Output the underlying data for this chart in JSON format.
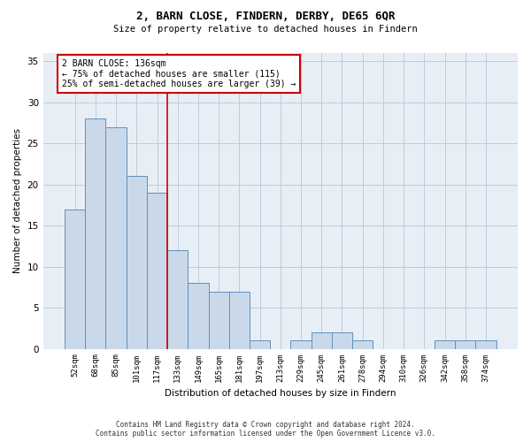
{
  "title1": "2, BARN CLOSE, FINDERN, DERBY, DE65 6QR",
  "title2": "Size of property relative to detached houses in Findern",
  "xlabel": "Distribution of detached houses by size in Findern",
  "ylabel": "Number of detached properties",
  "categories": [
    "52sqm",
    "68sqm",
    "85sqm",
    "101sqm",
    "117sqm",
    "133sqm",
    "149sqm",
    "165sqm",
    "181sqm",
    "197sqm",
    "213sqm",
    "229sqm",
    "245sqm",
    "261sqm",
    "278sqm",
    "294sqm",
    "310sqm",
    "326sqm",
    "342sqm",
    "358sqm",
    "374sqm"
  ],
  "values": [
    17,
    28,
    27,
    21,
    19,
    12,
    8,
    7,
    7,
    1,
    0,
    1,
    2,
    2,
    1,
    0,
    0,
    0,
    1,
    1,
    1
  ],
  "bar_color": "#c9d9ea",
  "bar_edge_color": "#6090bb",
  "vline_x": 4.5,
  "vline_color": "#cc0000",
  "annotation_text": "2 BARN CLOSE: 136sqm\n← 75% of detached houses are smaller (115)\n25% of semi-detached houses are larger (39) →",
  "annotation_box_color": "white",
  "annotation_box_edge_color": "#cc0000",
  "ylim": [
    0,
    36
  ],
  "yticks": [
    0,
    5,
    10,
    15,
    20,
    25,
    30,
    35
  ],
  "grid_color": "#bbccdd",
  "bg_color": "#e8eef5",
  "footer1": "Contains HM Land Registry data © Crown copyright and database right 2024.",
  "footer2": "Contains public sector information licensed under the Open Government Licence v3.0."
}
